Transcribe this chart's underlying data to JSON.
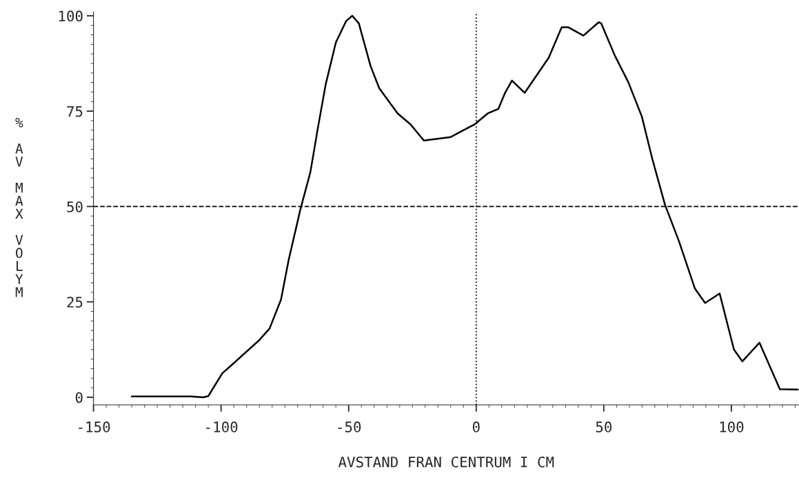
{
  "chart_data": {
    "type": "line",
    "xlabel": "AVSTAND FRAN CENTRUM I CM",
    "ylabel": "% AV MAX VOLYM",
    "x": [
      -135,
      -112,
      -107,
      -105,
      -99.5,
      -95.4,
      -85,
      -81,
      -76.5,
      -73.5,
      -69,
      -65,
      -62,
      -59,
      -55,
      -51,
      -48.6,
      -46,
      -41.4,
      -38,
      -30.8,
      -25.7,
      -20.5,
      -10,
      -0.7,
      4.5,
      8.7,
      11.3,
      14,
      19,
      28.4,
      33.5,
      36,
      42,
      48,
      49,
      54.3,
      59.6,
      64.9,
      69,
      74,
      79.4,
      85.7,
      89.7,
      95.4,
      101,
      104.3,
      111,
      119,
      126
    ],
    "series": [
      {
        "color": "#000000",
        "values": [
          0.2,
          0.2,
          0,
          0.3,
          6.3,
          8.7,
          15,
          18,
          25.6,
          36,
          49,
          59,
          70.8,
          82,
          93,
          98.6,
          100,
          98,
          86.8,
          81,
          74.4,
          71.5,
          67.3,
          68.2,
          71.5,
          74.4,
          75.6,
          79.8,
          83,
          79.8,
          89,
          97,
          97,
          94.8,
          98.3,
          98,
          89.6,
          82.6,
          73.6,
          62.5,
          50.4,
          41,
          28.5,
          24.7,
          27.2,
          12.5,
          9.4,
          14.3,
          2.1,
          2
        ]
      }
    ],
    "xlim": [
      -150,
      126.5
    ],
    "ylim": [
      -2,
      101
    ],
    "xticks": [
      -150,
      -100,
      -50,
      0,
      50,
      100
    ],
    "yticks": [
      0,
      25,
      50,
      75,
      100
    ],
    "ref_lines": [
      {
        "axis": "y",
        "value": 50,
        "line_style": "dashed",
        "color": "#000000"
      },
      {
        "axis": "x",
        "value": 0,
        "line_style": "dotted",
        "color": "#000000"
      }
    ],
    "grid": false,
    "legend": false,
    "marker": "none",
    "line_style": "solid"
  }
}
